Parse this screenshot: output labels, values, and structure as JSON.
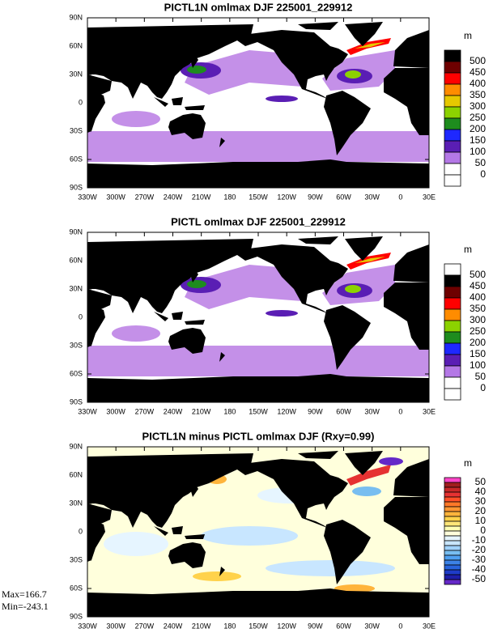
{
  "panels": [
    {
      "title": "PICTL1N omlmax DJF 225001_229912",
      "lat_labels": [
        "90N",
        "60N",
        "30N",
        "0",
        "30S",
        "60S",
        "90S"
      ],
      "lon_labels": [
        "330W",
        "300W",
        "270W",
        "240W",
        "210W",
        "180",
        "150W",
        "120W",
        "90W",
        "60W",
        "30W",
        "0",
        "30E"
      ],
      "colorbar": {
        "unit": "m",
        "labels": [
          500,
          450,
          400,
          350,
          300,
          250,
          200,
          150,
          100,
          50,
          0
        ],
        "colors": [
          "#000000",
          "#6e0000",
          "#ff0000",
          "#ff8c00",
          "#e6c800",
          "#8cd200",
          "#1e8c1e",
          "#1e28ff",
          "#5a1eb4",
          "#b478e6",
          "#ffffff",
          "#ffffff"
        ]
      },
      "style": "depth"
    },
    {
      "title": "PICTL omlmax DJF 225001_229912",
      "lat_labels": [
        "90N",
        "60N",
        "30N",
        "0",
        "30S",
        "60S",
        "90S"
      ],
      "lon_labels": [
        "330W",
        "300W",
        "270W",
        "240W",
        "210W",
        "180",
        "150W",
        "120W",
        "90W",
        "60W",
        "30W",
        "0",
        "30E"
      ],
      "colorbar": {
        "unit": "m",
        "labels": [
          500,
          450,
          400,
          350,
          300,
          250,
          200,
          150,
          100,
          50,
          0
        ],
        "colors": [
          "#ffffff",
          "#000000",
          "#6e0000",
          "#ff0000",
          "#ff8c00",
          "#8cd200",
          "#1e8c1e",
          "#1e28ff",
          "#5a1eb4",
          "#b478e6",
          "#ffffff",
          "#ffffff"
        ]
      },
      "style": "depth"
    },
    {
      "title": "PICTL1N minus PICTL omlmax DJF (Rxy=0.99)",
      "lat_labels": [
        "90N",
        "60N",
        "30N",
        "0",
        "30S",
        "60S",
        "90S"
      ],
      "lon_labels": [
        "330W",
        "300W",
        "270W",
        "240W",
        "210W",
        "180",
        "150W",
        "120W",
        "90W",
        "60W",
        "30W",
        "0",
        "30E"
      ],
      "colorbar": {
        "unit": "m",
        "labels": [
          50,
          40,
          30,
          20,
          10,
          0,
          -10,
          -20,
          -30,
          -40,
          -50
        ],
        "colors": [
          "#ff46c8",
          "#a01e1e",
          "#c82828",
          "#e63232",
          "#ff5028",
          "#ff7828",
          "#ff9632",
          "#ffb43c",
          "#ffd24b",
          "#ffe678",
          "#ffffb4",
          "#ffffdc",
          "#e6f5ff",
          "#c8e6ff",
          "#a0d2ff",
          "#78bef0",
          "#50a0f0",
          "#3c82e6",
          "#2864dc",
          "#1e3cc8",
          "#1e1eaa",
          "#6428c8"
        ]
      },
      "style": "diff"
    }
  ],
  "stats": {
    "max": "Max=166.7",
    "min": "Min=-243.1"
  }
}
